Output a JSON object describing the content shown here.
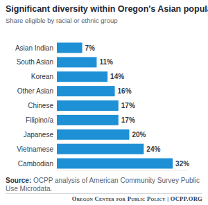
{
  "chart_data": {
    "type": "bar",
    "orientation": "horizontal",
    "title": "Significant diversity within Oregon's Asian population",
    "subtitle": "Share eligible by racial or ethnic group",
    "categories": [
      "Asian Indian",
      "South Asian",
      "Korean",
      "Other Asian",
      "Chinese",
      "Filipino/a",
      "Japanese",
      "Vietnamese",
      "Cambodian"
    ],
    "values": [
      7,
      11,
      14,
      16,
      17,
      17,
      20,
      24,
      32
    ],
    "value_labels": [
      "7%",
      "11%",
      "14%",
      "16%",
      "17%",
      "17%",
      "20%",
      "24%",
      "32%"
    ],
    "color": "#1e90d6",
    "xlim": [
      0,
      36
    ],
    "tick_labels": "y",
    "grid": false,
    "data_labels": true,
    "source_label": "Source:",
    "source": "OCPP analysis of American Community Survey Public Use Microdata.",
    "footer": "Oregon Center for Public Policy | OCPP.ORG"
  }
}
